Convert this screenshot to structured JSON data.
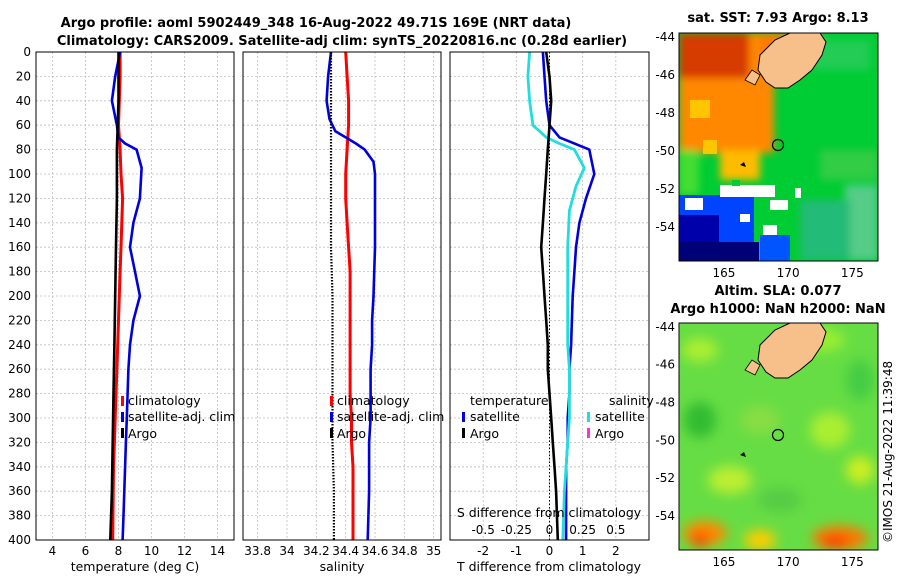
{
  "titles": {
    "line1": "Argo profile: aoml 5902449_348 16-Aug-2022 49.71S 169E (NRT data)",
    "line2": "Climatology: CARS2009. Satellite-adj clim: synTS_20220816.nc (0.28d earlier)"
  },
  "depth_ticks": [
    "0",
    "20",
    "40",
    "60",
    "80",
    "100",
    "120",
    "140",
    "160",
    "180",
    "200",
    "220",
    "240",
    "260",
    "280",
    "300",
    "320",
    "340",
    "360",
    "380",
    "400"
  ],
  "colors": {
    "climatology": "#ff0000",
    "satellite": "#0000dd",
    "argo": "#000000",
    "sal_sat": "#22dddd",
    "sal_argo": "#ff33cc"
  },
  "chart_data": [
    {
      "id": "temperature",
      "type": "line",
      "xlabel": "temperature (deg C)",
      "xlim": [
        3,
        15
      ],
      "ylim": [
        400,
        0
      ],
      "xticks": [
        "4",
        "6",
        "8",
        "10",
        "12",
        "14"
      ],
      "legend": [
        "climatology",
        "satellite-adj. clim",
        "Argo"
      ],
      "series": [
        {
          "name": "climatology",
          "x": [
            8.1,
            8.1,
            8.05,
            8.0,
            8.1,
            8.15,
            8.25,
            8.2,
            8.15,
            8.1,
            8.05,
            8.0,
            7.95,
            7.9,
            7.85,
            7.8,
            7.75,
            7.7,
            7.65
          ],
          "y": [
            0,
            20,
            40,
            60,
            80,
            100,
            120,
            140,
            160,
            180,
            200,
            220,
            240,
            260,
            280,
            300,
            320,
            340,
            400
          ]
        },
        {
          "name": "satellite-adj. clim",
          "x": [
            8.1,
            7.8,
            7.6,
            7.9,
            8.0,
            8.4,
            9.1,
            9.4,
            9.3,
            8.9,
            8.7,
            9.0,
            9.3,
            8.9,
            8.7,
            8.6,
            8.55,
            8.5,
            8.45,
            8.4,
            8.35,
            8.3,
            8.25
          ],
          "y": [
            0,
            20,
            40,
            60,
            70,
            75,
            80,
            95,
            120,
            140,
            160,
            180,
            200,
            220,
            240,
            260,
            280,
            300,
            320,
            340,
            360,
            380,
            400
          ]
        },
        {
          "name": "Argo",
          "x": [
            8.0,
            8.0,
            8.0,
            7.95,
            7.9,
            7.9,
            7.85,
            7.8,
            7.75,
            7.7,
            7.65,
            7.6,
            7.55,
            7.5
          ],
          "y": [
            0,
            20,
            40,
            60,
            80,
            120,
            160,
            200,
            240,
            280,
            320,
            360,
            380,
            400
          ]
        }
      ]
    },
    {
      "id": "salinity",
      "type": "line",
      "xlabel": "salinity",
      "xlim": [
        33.7,
        35.05
      ],
      "ylim": [
        400,
        0
      ],
      "xticks": [
        "33.8",
        "34",
        "34.2",
        "34.4",
        "34.6",
        "34.8",
        "35"
      ],
      "legend": [
        "climatology",
        "satellite-adj. clim",
        "Argo"
      ],
      "series": [
        {
          "name": "climatology",
          "x": [
            34.4,
            34.41,
            34.42,
            34.42,
            34.41,
            34.4,
            34.4,
            34.41,
            34.42,
            34.43,
            34.43,
            34.43,
            34.43,
            34.43,
            34.43,
            34.44,
            34.44,
            34.45,
            34.45
          ],
          "y": [
            0,
            20,
            40,
            60,
            80,
            100,
            120,
            140,
            160,
            180,
            200,
            220,
            240,
            260,
            280,
            300,
            320,
            340,
            400
          ]
        },
        {
          "name": "satellite-adj. clim",
          "x": [
            34.3,
            34.28,
            34.27,
            34.29,
            34.33,
            34.4,
            34.47,
            34.53,
            34.59,
            34.6,
            34.6,
            34.6,
            34.59,
            34.58,
            34.58,
            34.57,
            34.57,
            34.57,
            34.56,
            34.56,
            34.56,
            34.55
          ],
          "y": [
            0,
            20,
            40,
            55,
            65,
            70,
            75,
            80,
            90,
            100,
            120,
            160,
            200,
            220,
            240,
            260,
            280,
            300,
            320,
            340,
            360,
            400
          ]
        },
        {
          "name": "Argo",
          "x": [
            34.3,
            34.3,
            34.3,
            34.3,
            34.3,
            34.31,
            34.31,
            34.31,
            34.31,
            34.32,
            34.32
          ],
          "y": [
            0,
            40,
            80,
            120,
            160,
            200,
            240,
            280,
            320,
            360,
            400
          ]
        }
      ]
    },
    {
      "id": "difference",
      "type": "line",
      "xlabel": "T difference from climatology",
      "xlabel_top": "S difference from climatology",
      "xlim": [
        -3,
        3
      ],
      "ylim": [
        400,
        0
      ],
      "xticks": [
        "-2",
        "-1",
        "0",
        "1",
        "2"
      ],
      "xticks_top": [
        "-0.5",
        "-0.25",
        "0",
        "0.25",
        "0.5"
      ],
      "legend_left_title": "temperature",
      "legend_right_title": "salinity",
      "legend_left": [
        "satellite",
        "Argo"
      ],
      "legend_right": [
        "satellite",
        "Argo"
      ],
      "series": [
        {
          "name": "temperature satellite",
          "x": [
            -0.2,
            -0.15,
            -0.1,
            0.0,
            0.3,
            1.2,
            1.35,
            1.1,
            0.9,
            0.8,
            0.75,
            0.7,
            0.65,
            0.6,
            0.6,
            0.55,
            0.55,
            0.5,
            0.5,
            0.5
          ],
          "y": [
            0,
            20,
            40,
            60,
            70,
            80,
            100,
            120,
            140,
            160,
            180,
            200,
            240,
            260,
            280,
            300,
            320,
            340,
            360,
            400
          ]
        },
        {
          "name": "salinity satellite",
          "x": [
            -0.6,
            -0.65,
            -0.6,
            -0.5,
            -0.1,
            0.3,
            0.75,
            1.05,
            0.8,
            0.6,
            0.55,
            0.55,
            0.55,
            0.6,
            0.6,
            0.6,
            0.55,
            0.5,
            0.45,
            0.4
          ],
          "y": [
            0,
            20,
            40,
            60,
            70,
            75,
            80,
            95,
            110,
            130,
            160,
            200,
            240,
            260,
            280,
            300,
            320,
            340,
            360,
            400
          ]
        },
        {
          "name": "temperature Argo",
          "x": [
            -0.1,
            0.0,
            0.05,
            0.0,
            -0.05,
            -0.1,
            -0.15,
            -0.2,
            -0.25,
            -0.2,
            -0.15,
            -0.1,
            -0.05,
            -0.05,
            0.0,
            0.05,
            0.1,
            0.15,
            0.2,
            0.25
          ],
          "y": [
            0,
            20,
            40,
            60,
            80,
            100,
            120,
            140,
            160,
            180,
            200,
            220,
            240,
            260,
            280,
            300,
            320,
            340,
            360,
            400
          ]
        }
      ]
    },
    {
      "id": "sst-map",
      "type": "heatmap",
      "title": "sat. SST: 7.93 Argo: 8.13",
      "xlim": [
        161.5,
        177
      ],
      "ylim": [
        -55.8,
        -43.8
      ],
      "xticks": [
        "165",
        "170",
        "175"
      ],
      "yticks": [
        "-44",
        "-46",
        "-48",
        "-50",
        "-52",
        "-54"
      ],
      "marker": {
        "lon": 169,
        "lat": -49.71
      }
    },
    {
      "id": "sla-map",
      "type": "heatmap",
      "title": "Altim. SLA: 0.077",
      "title2": "Argo h1000: NaN h2000: NaN",
      "xlim": [
        161.5,
        177
      ],
      "ylim": [
        -55.8,
        -43.8
      ],
      "xticks": [
        "165",
        "170",
        "175"
      ],
      "yticks": [
        "-44",
        "-46",
        "-48",
        "-50",
        "-52",
        "-54"
      ],
      "marker": {
        "lon": 169,
        "lat": -49.71
      }
    }
  ],
  "stamp": "©IMOS 21-Aug-2022 11:39:48"
}
